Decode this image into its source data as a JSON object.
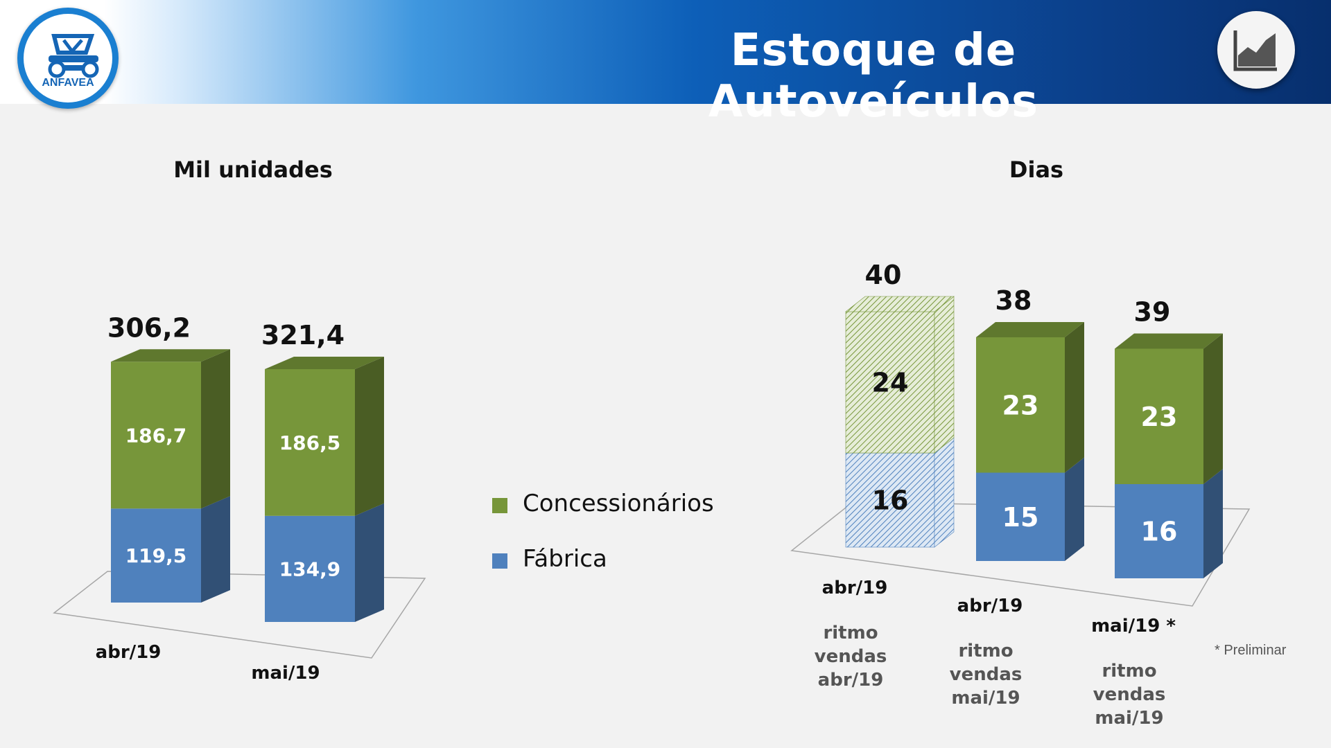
{
  "header": {
    "title": "Estoque de Autoveículos",
    "logo_text": "ANFAVEA",
    "icon": "area-chart-icon",
    "colors": {
      "gradient_start": "#ffffff",
      "gradient_end": "#072f6d"
    }
  },
  "legend": {
    "items": [
      {
        "label": "Concessionários",
        "color": "#77963a"
      },
      {
        "label": "Fábrica",
        "color": "#4f81bd"
      }
    ]
  },
  "footnote": "* Preliminar",
  "chart_data": [
    {
      "type": "bar",
      "stacked": true,
      "three_d": true,
      "title": "Mil unidades",
      "categories": [
        "abr/19",
        "mai/19"
      ],
      "series": [
        {
          "name": "Fábrica",
          "values": [
            119.5,
            134.9
          ],
          "labels": [
            "119,5",
            "134,9"
          ],
          "color": "#4f81bd"
        },
        {
          "name": "Concessionários",
          "values": [
            186.7,
            186.5
          ],
          "labels": [
            "186,7",
            "186,5"
          ],
          "color": "#77963a"
        }
      ],
      "totals": [
        "306,2",
        "321,4"
      ]
    },
    {
      "type": "bar",
      "stacked": true,
      "three_d": true,
      "title": "Dias",
      "categories": [
        {
          "top": "abr/19",
          "sub": [
            "ritmo",
            "vendas",
            "abr/19"
          ]
        },
        {
          "top": "abr/19",
          "sub": [
            "ritmo",
            "vendas",
            "mai/19"
          ]
        },
        {
          "top": "mai/19 *",
          "sub": [
            "ritmo",
            "vendas",
            "mai/19"
          ]
        }
      ],
      "series": [
        {
          "name": "Fábrica",
          "values": [
            16,
            15,
            16
          ],
          "labels": [
            "16",
            "15",
            "16"
          ],
          "color": "#4f81bd"
        },
        {
          "name": "Concessionários",
          "values": [
            24,
            23,
            23
          ],
          "labels": [
            "24",
            "23",
            "23"
          ],
          "color": "#77963a"
        }
      ],
      "totals": [
        "40",
        "38",
        "39"
      ],
      "hatched_first_bar": true
    }
  ]
}
